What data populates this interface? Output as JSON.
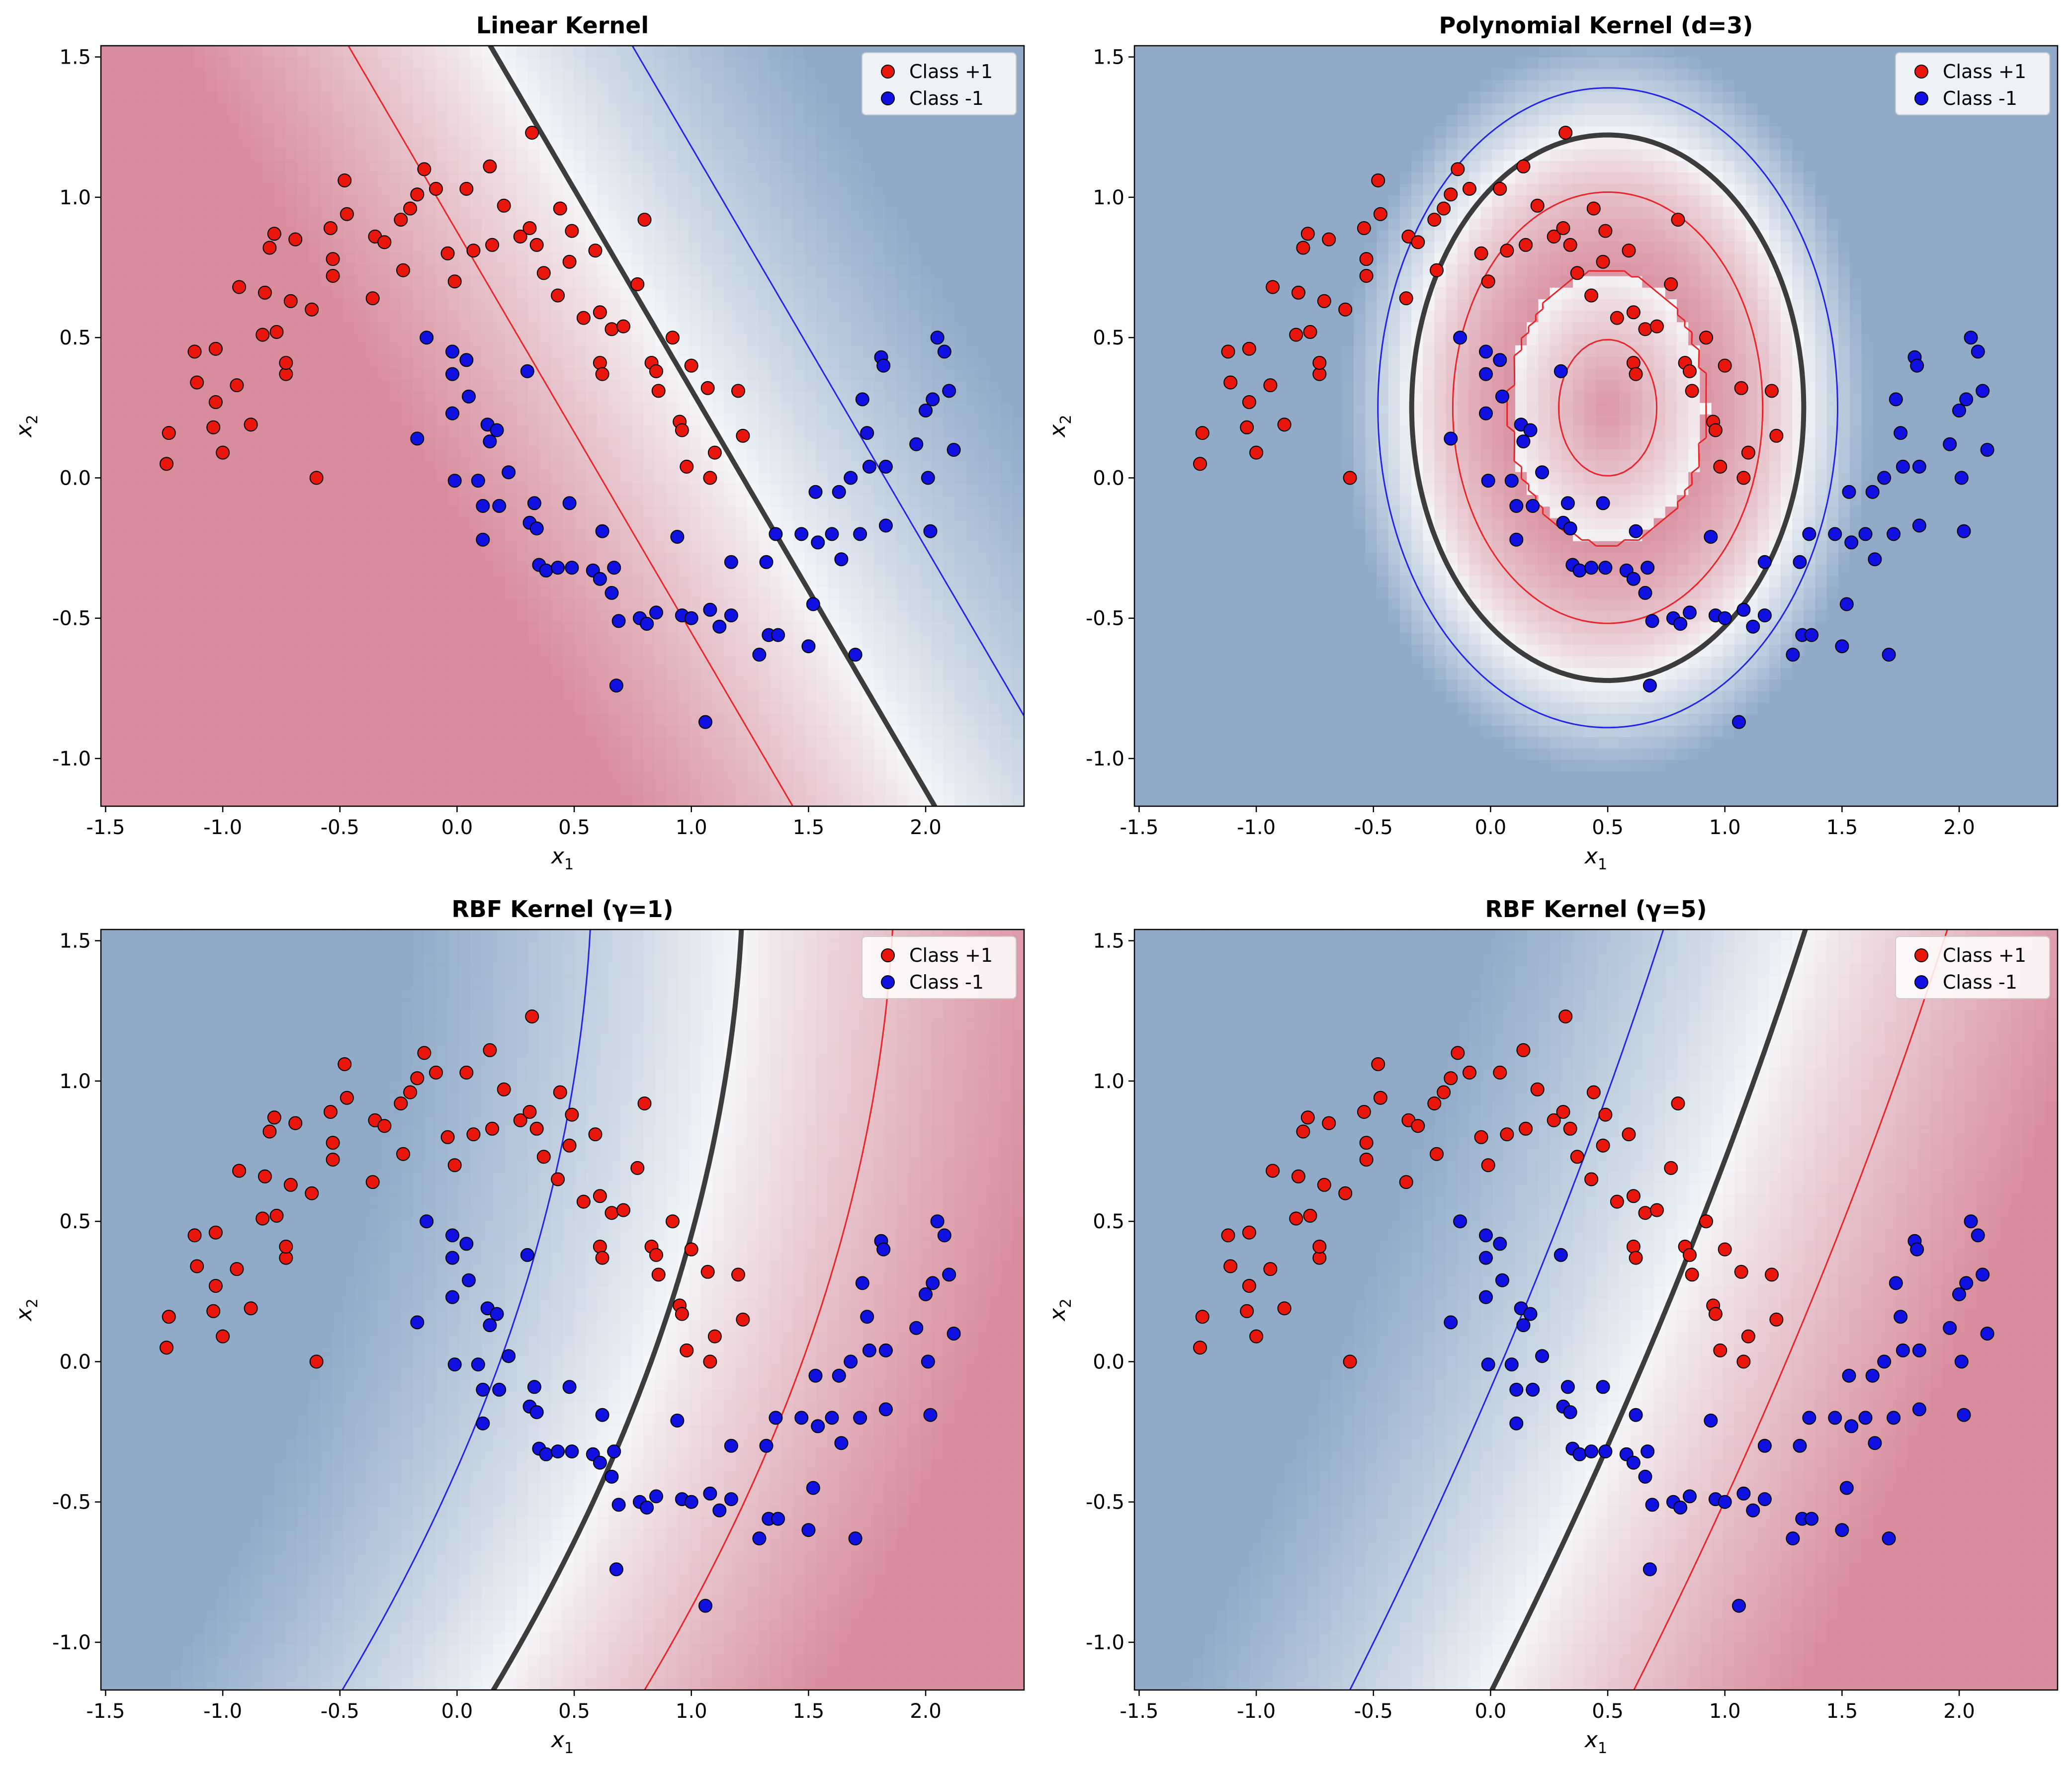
{
  "chart_data": [
    {
      "type": "scatter",
      "title": "Linear Kernel",
      "xlabel_base": "x",
      "xlabel_sub": "1",
      "ylabel_base": "x",
      "ylabel_sub": "2",
      "xlim": [
        -1.52,
        2.42
      ],
      "ylim": [
        -1.17,
        1.54
      ],
      "xticks": [
        -1.5,
        -1.0,
        -0.5,
        0.0,
        0.5,
        1.0,
        1.5,
        2.0
      ],
      "xtick_labels": [
        "-1.5",
        "-1.0",
        "-0.5",
        "0.0",
        "0.5",
        "1.0",
        "1.5",
        "2.0"
      ],
      "yticks": [
        -1.0,
        -0.5,
        0.0,
        0.5,
        1.0,
        1.5
      ],
      "ytick_labels": [
        "-1.0",
        "-0.5",
        "0.0",
        "0.5",
        "1.0",
        "1.5"
      ],
      "legend": {
        "position": "top-right",
        "entries": [
          {
            "label": "Class +1",
            "color": "#e8160c"
          },
          {
            "label": "Class -1",
            "color": "#1010e0"
          }
        ]
      },
      "kernel": "linear",
      "decision_boundary": "f(x) = 0 (thick dark line)",
      "margins": "f(x) = +1 (red line), f(x) = -1 (blue line)"
    },
    {
      "type": "scatter",
      "title": "Polynomial Kernel (d=3)",
      "xlabel_base": "x",
      "xlabel_sub": "1",
      "ylabel_base": "x",
      "ylabel_sub": "2",
      "xlim": [
        -1.52,
        2.42
      ],
      "ylim": [
        -1.17,
        1.54
      ],
      "xticks": [
        -1.5,
        -1.0,
        -0.5,
        0.0,
        0.5,
        1.0,
        1.5,
        2.0
      ],
      "xtick_labels": [
        "-1.5",
        "-1.0",
        "-0.5",
        "0.0",
        "0.5",
        "1.0",
        "1.5",
        "2.0"
      ],
      "yticks": [
        -1.0,
        -0.5,
        0.0,
        0.5,
        1.0,
        1.5
      ],
      "ytick_labels": [
        "-1.0",
        "-0.5",
        "0.0",
        "0.5",
        "1.0",
        "1.5"
      ],
      "legend": {
        "position": "top-right",
        "entries": [
          {
            "label": "Class +1",
            "color": "#e8160c"
          },
          {
            "label": "Class -1",
            "color": "#1010e0"
          }
        ]
      },
      "kernel": "poly"
    },
    {
      "type": "scatter",
      "title": "RBF Kernel (γ=1)",
      "xlabel_base": "x",
      "xlabel_sub": "1",
      "ylabel_base": "x",
      "ylabel_sub": "2",
      "xlim": [
        -1.52,
        2.42
      ],
      "ylim": [
        -1.17,
        1.54
      ],
      "xticks": [
        -1.5,
        -1.0,
        -0.5,
        0.0,
        0.5,
        1.0,
        1.5,
        2.0
      ],
      "xtick_labels": [
        "-1.5",
        "-1.0",
        "-0.5",
        "0.0",
        "0.5",
        "1.0",
        "1.5",
        "2.0"
      ],
      "yticks": [
        -1.0,
        -0.5,
        0.0,
        0.5,
        1.0,
        1.5
      ],
      "ytick_labels": [
        "-1.0",
        "-0.5",
        "0.0",
        "0.5",
        "1.0",
        "1.5"
      ],
      "legend": {
        "position": "top-right",
        "entries": [
          {
            "label": "Class +1",
            "color": "#e8160c"
          },
          {
            "label": "Class -1",
            "color": "#1010e0"
          }
        ]
      },
      "kernel": "rbf1"
    },
    {
      "type": "scatter",
      "title": "RBF Kernel (γ=5)",
      "xlabel_base": "x",
      "xlabel_sub": "1",
      "ylabel_base": "x",
      "ylabel_sub": "2",
      "xlim": [
        -1.52,
        2.42
      ],
      "ylim": [
        -1.17,
        1.54
      ],
      "xticks": [
        -1.5,
        -1.0,
        -0.5,
        0.0,
        0.5,
        1.0,
        1.5,
        2.0
      ],
      "xtick_labels": [
        "-1.5",
        "-1.0",
        "-0.5",
        "0.0",
        "0.5",
        "1.0",
        "1.5",
        "2.0"
      ],
      "yticks": [
        -1.0,
        -0.5,
        0.0,
        0.5,
        1.0,
        1.5
      ],
      "ytick_labels": [
        "-1.0",
        "-0.5",
        "0.0",
        "0.5",
        "1.0",
        "1.5"
      ],
      "legend": {
        "position": "top-right",
        "entries": [
          {
            "label": "Class +1",
            "color": "#e8160c"
          },
          {
            "label": "Class -1",
            "color": "#1010e0"
          }
        ]
      },
      "kernel": "rbf5"
    }
  ],
  "dataset": {
    "class_pos": [
      [
        -1.24,
        0.05
      ],
      [
        -1.23,
        0.16
      ],
      [
        -1.12,
        0.45
      ],
      [
        -1.11,
        0.34
      ],
      [
        -1.04,
        0.18
      ],
      [
        -1.03,
        0.27
      ],
      [
        -1.03,
        0.46
      ],
      [
        -1.0,
        0.09
      ],
      [
        -0.94,
        0.33
      ],
      [
        -0.93,
        0.68
      ],
      [
        -0.88,
        0.19
      ],
      [
        -0.83,
        0.51
      ],
      [
        -0.82,
        0.66
      ],
      [
        -0.8,
        0.82
      ],
      [
        -0.78,
        0.87
      ],
      [
        -0.77,
        0.52
      ],
      [
        -0.73,
        0.37
      ],
      [
        -0.73,
        0.41
      ],
      [
        -0.71,
        0.63
      ],
      [
        -0.69,
        0.85
      ],
      [
        -0.62,
        0.6
      ],
      [
        -0.6,
        0.0
      ],
      [
        -0.54,
        0.89
      ],
      [
        -0.53,
        0.78
      ],
      [
        -0.53,
        0.72
      ],
      [
        -0.48,
        1.06
      ],
      [
        -0.47,
        0.94
      ],
      [
        -0.36,
        0.64
      ],
      [
        -0.35,
        0.86
      ],
      [
        -0.31,
        0.84
      ],
      [
        -0.24,
        0.92
      ],
      [
        -0.23,
        0.74
      ],
      [
        -0.2,
        0.96
      ],
      [
        -0.17,
        1.01
      ],
      [
        -0.14,
        1.1
      ],
      [
        -0.09,
        1.03
      ],
      [
        -0.04,
        0.8
      ],
      [
        -0.01,
        0.7
      ],
      [
        0.04,
        1.03
      ],
      [
        0.07,
        0.81
      ],
      [
        0.14,
        1.11
      ],
      [
        0.15,
        0.83
      ],
      [
        0.2,
        0.97
      ],
      [
        0.27,
        0.86
      ],
      [
        0.31,
        0.89
      ],
      [
        0.32,
        1.23
      ],
      [
        0.34,
        0.83
      ],
      [
        0.37,
        0.73
      ],
      [
        0.43,
        0.65
      ],
      [
        0.44,
        0.96
      ],
      [
        0.48,
        0.77
      ],
      [
        0.49,
        0.88
      ],
      [
        0.54,
        0.57
      ],
      [
        0.59,
        0.81
      ],
      [
        0.61,
        0.59
      ],
      [
        0.61,
        0.41
      ],
      [
        0.62,
        0.37
      ],
      [
        0.66,
        0.53
      ],
      [
        0.71,
        0.54
      ],
      [
        0.77,
        0.69
      ],
      [
        0.8,
        0.92
      ],
      [
        0.83,
        0.41
      ],
      [
        0.85,
        0.38
      ],
      [
        0.86,
        0.31
      ],
      [
        0.92,
        0.5
      ],
      [
        0.95,
        0.2
      ],
      [
        0.96,
        0.17
      ],
      [
        0.98,
        0.04
      ],
      [
        1.0,
        0.4
      ],
      [
        1.07,
        0.32
      ],
      [
        1.08,
        0.0
      ],
      [
        1.1,
        0.09
      ],
      [
        1.2,
        0.31
      ],
      [
        1.22,
        0.15
      ]
    ],
    "class_neg": [
      [
        -0.17,
        0.14
      ],
      [
        -0.13,
        0.5
      ],
      [
        -0.02,
        0.45
      ],
      [
        -0.02,
        0.37
      ],
      [
        -0.02,
        0.23
      ],
      [
        -0.01,
        -0.01
      ],
      [
        0.04,
        0.42
      ],
      [
        0.05,
        0.29
      ],
      [
        0.09,
        -0.01
      ],
      [
        0.11,
        -0.1
      ],
      [
        0.11,
        -0.22
      ],
      [
        0.13,
        0.19
      ],
      [
        0.14,
        0.13
      ],
      [
        0.17,
        0.17
      ],
      [
        0.18,
        -0.1
      ],
      [
        0.22,
        0.02
      ],
      [
        0.3,
        0.38
      ],
      [
        0.31,
        -0.16
      ],
      [
        0.33,
        -0.09
      ],
      [
        0.34,
        -0.18
      ],
      [
        0.35,
        -0.31
      ],
      [
        0.38,
        -0.33
      ],
      [
        0.43,
        -0.32
      ],
      [
        0.48,
        -0.09
      ],
      [
        0.49,
        -0.32
      ],
      [
        0.58,
        -0.33
      ],
      [
        0.61,
        -0.36
      ],
      [
        0.62,
        -0.19
      ],
      [
        0.66,
        -0.41
      ],
      [
        0.67,
        -0.32
      ],
      [
        0.68,
        -0.74
      ],
      [
        0.69,
        -0.51
      ],
      [
        0.78,
        -0.5
      ],
      [
        0.81,
        -0.52
      ],
      [
        0.85,
        -0.48
      ],
      [
        0.94,
        -0.21
      ],
      [
        0.96,
        -0.49
      ],
      [
        1.0,
        -0.5
      ],
      [
        1.06,
        -0.87
      ],
      [
        1.08,
        -0.47
      ],
      [
        1.12,
        -0.53
      ],
      [
        1.17,
        -0.3
      ],
      [
        1.17,
        -0.49
      ],
      [
        1.29,
        -0.63
      ],
      [
        1.32,
        -0.3
      ],
      [
        1.33,
        -0.56
      ],
      [
        1.36,
        -0.2
      ],
      [
        1.37,
        -0.56
      ],
      [
        1.47,
        -0.2
      ],
      [
        1.5,
        -0.6
      ],
      [
        1.52,
        -0.45
      ],
      [
        1.53,
        -0.05
      ],
      [
        1.54,
        -0.23
      ],
      [
        1.6,
        -0.2
      ],
      [
        1.63,
        -0.05
      ],
      [
        1.64,
        -0.29
      ],
      [
        1.68,
        0.0
      ],
      [
        1.7,
        -0.63
      ],
      [
        1.72,
        -0.2
      ],
      [
        1.73,
        0.28
      ],
      [
        1.75,
        0.16
      ],
      [
        1.76,
        0.04
      ],
      [
        1.81,
        0.43
      ],
      [
        1.82,
        0.4
      ],
      [
        1.83,
        0.04
      ],
      [
        1.83,
        -0.17
      ],
      [
        1.96,
        0.12
      ],
      [
        2.0,
        0.24
      ],
      [
        2.01,
        -0.0
      ],
      [
        2.02,
        -0.19
      ],
      [
        2.03,
        0.28
      ],
      [
        2.05,
        0.5
      ],
      [
        2.08,
        0.45
      ],
      [
        2.1,
        0.31
      ],
      [
        2.12,
        0.1
      ]
    ]
  }
}
